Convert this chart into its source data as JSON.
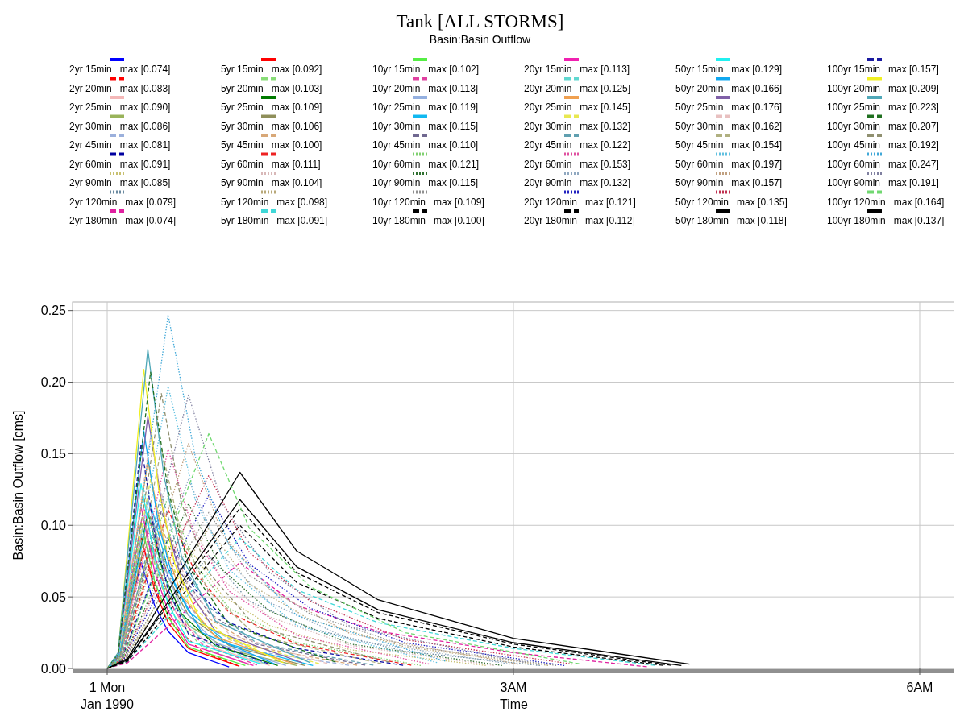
{
  "chart_data": {
    "type": "line",
    "title": "Tank [ALL STORMS]",
    "subtitle": "Basin:Basin Outflow",
    "xlabel": "Time",
    "ylabel": "Basin:Basin Outflow [cms]",
    "xlim": [
      -0.256,
      6.262
    ],
    "xticks": [
      {
        "value": 0,
        "label": "1 Mon\nJan 1990"
      },
      {
        "value": 3,
        "label": "3AM"
      },
      {
        "value": 6,
        "label": "6AM"
      }
    ],
    "ylim": [
      0,
      0.256
    ],
    "yticks": [
      {
        "value": 0,
        "label": "0.00"
      },
      {
        "value": 0.05,
        "label": "0.05"
      },
      {
        "value": 0.1,
        "label": "0.10"
      },
      {
        "value": 0.15,
        "label": "0.15"
      },
      {
        "value": 0.2,
        "label": "0.20"
      },
      {
        "value": 0.25,
        "label": "0.25"
      }
    ],
    "grid": true,
    "legend": "top",
    "marker": "none",
    "series": [
      {
        "name": "2yr 15min   max [0.074]",
        "color": "#0000ff",
        "line_style": "solid",
        "x": [
          0,
          0.08,
          0.25,
          0.35,
          0.45,
          0.6,
          0.9
        ],
        "values": [
          0,
          0.004,
          0.074,
          0.044,
          0.026,
          0.011,
          0.001
        ]
      },
      {
        "name": "2yr 20min   max [0.083]",
        "color": "#ff0000",
        "line_style": "dashed",
        "x": [
          0,
          0.08,
          0.27,
          0.38,
          0.5,
          0.7,
          0.99
        ],
        "values": [
          0,
          0.004,
          0.083,
          0.05,
          0.029,
          0.012,
          0.001
        ]
      },
      {
        "name": "2yr 25min   max [0.090]",
        "color": "#f4b8b8",
        "line_style": "solid",
        "x": [
          0,
          0.08,
          0.3,
          0.42,
          0.55,
          0.8,
          1.2
        ],
        "values": [
          0,
          0.005,
          0.09,
          0.054,
          0.032,
          0.014,
          0.002
        ]
      },
      {
        "name": "2yr 30min   max [0.086]",
        "color": "#99b35a",
        "line_style": "solid",
        "x": [
          0,
          0.08,
          0.32,
          0.45,
          0.6,
          0.9,
          1.4
        ],
        "values": [
          0,
          0.004,
          0.086,
          0.052,
          0.03,
          0.013,
          0.002
        ]
      },
      {
        "name": "2yr 45min   max [0.081]",
        "color": "#9bb0dc",
        "line_style": "dashed",
        "x": [
          0,
          0.1,
          0.4,
          0.55,
          0.75,
          1.1,
          1.8
        ],
        "values": [
          0,
          0.004,
          0.081,
          0.049,
          0.028,
          0.012,
          0.002
        ]
      },
      {
        "name": "2yr 60min   max [0.091]",
        "color": "#0000a0",
        "line_style": "dashed",
        "x": [
          0,
          0.1,
          0.45,
          0.65,
          0.9,
          1.4,
          2.2
        ],
        "values": [
          0,
          0.005,
          0.091,
          0.055,
          0.032,
          0.014,
          0.002
        ]
      },
      {
        "name": "2yr 90min   max [0.085]",
        "color": "#c8c070",
        "line_style": "dotted",
        "x": [
          0,
          0.12,
          0.6,
          0.85,
          1.2,
          1.8,
          2.8
        ],
        "values": [
          0,
          0.004,
          0.085,
          0.051,
          0.03,
          0.013,
          0.002
        ]
      },
      {
        "name": "2yr 120min   max [0.079]",
        "color": "#6a8aa0",
        "line_style": "dotted",
        "x": [
          0,
          0.12,
          0.75,
          1.05,
          1.5,
          2.2,
          3.2
        ],
        "values": [
          0,
          0.004,
          0.079,
          0.047,
          0.028,
          0.012,
          0.002
        ]
      },
      {
        "name": "2yr 180min   max [0.074]",
        "color": "#e020a0",
        "line_style": "dashed",
        "x": [
          0,
          0.15,
          0.98,
          1.4,
          2.0,
          3.0,
          4.0
        ],
        "values": [
          0,
          0.004,
          0.074,
          0.044,
          0.026,
          0.011,
          0.001
        ]
      },
      {
        "name": "5yr 15min   max [0.092]",
        "color": "#ff0000",
        "line_style": "solid",
        "x": [
          0,
          0.08,
          0.25,
          0.35,
          0.45,
          0.6,
          0.96
        ],
        "values": [
          0,
          0.005,
          0.092,
          0.055,
          0.032,
          0.014,
          0.002
        ]
      },
      {
        "name": "5yr 20min   max [0.103]",
        "color": "#88dd77",
        "line_style": "dashed",
        "x": [
          0,
          0.08,
          0.27,
          0.38,
          0.5,
          0.7,
          1.06
        ],
        "values": [
          0,
          0.005,
          0.103,
          0.062,
          0.036,
          0.015,
          0.002
        ]
      },
      {
        "name": "5yr 25min   max [0.109]",
        "color": "#007a00",
        "line_style": "solid",
        "x": [
          0,
          0.08,
          0.3,
          0.42,
          0.55,
          0.8,
          1.26
        ],
        "values": [
          0,
          0.005,
          0.109,
          0.065,
          0.038,
          0.016,
          0.002
        ]
      },
      {
        "name": "5yr 30min   max [0.106]",
        "color": "#8f8f5a",
        "line_style": "solid",
        "x": [
          0,
          0.08,
          0.32,
          0.45,
          0.6,
          0.9,
          1.46
        ],
        "values": [
          0,
          0.005,
          0.106,
          0.064,
          0.037,
          0.016,
          0.002
        ]
      },
      {
        "name": "5yr 45min   max [0.100]",
        "color": "#d8a878",
        "line_style": "dashed",
        "x": [
          0,
          0.1,
          0.4,
          0.55,
          0.75,
          1.1,
          1.86
        ],
        "values": [
          0,
          0.005,
          0.1,
          0.06,
          0.035,
          0.015,
          0.002
        ]
      },
      {
        "name": "5yr 60min   max [0.111]",
        "color": "#ee2222",
        "line_style": "dashed",
        "x": [
          0,
          0.1,
          0.45,
          0.65,
          0.9,
          1.4,
          2.26
        ],
        "values": [
          0,
          0.006,
          0.111,
          0.067,
          0.039,
          0.017,
          0.002
        ]
      },
      {
        "name": "5yr 90min   max [0.104]",
        "color": "#d8b8b8",
        "line_style": "dotted",
        "x": [
          0,
          0.12,
          0.6,
          0.85,
          1.2,
          1.8,
          2.86
        ],
        "values": [
          0,
          0.005,
          0.104,
          0.062,
          0.036,
          0.016,
          0.002
        ]
      },
      {
        "name": "5yr 120min   max [0.098]",
        "color": "#b8a878",
        "line_style": "dotted",
        "x": [
          0,
          0.12,
          0.75,
          1.05,
          1.5,
          2.2,
          3.26
        ],
        "values": [
          0,
          0.005,
          0.098,
          0.059,
          0.034,
          0.015,
          0.002
        ]
      },
      {
        "name": "5yr 180min   max [0.091]",
        "color": "#40d8d8",
        "line_style": "dashed",
        "x": [
          0,
          0.15,
          0.98,
          1.4,
          2.0,
          3.0,
          4.06
        ],
        "values": [
          0,
          0.005,
          0.091,
          0.055,
          0.032,
          0.014,
          0.002
        ]
      },
      {
        "name": "10yr 15min   max [0.102]",
        "color": "#55ee44",
        "line_style": "solid",
        "x": [
          0,
          0.08,
          0.25,
          0.35,
          0.45,
          0.6,
          1.02
        ],
        "values": [
          0,
          0.005,
          0.102,
          0.061,
          0.036,
          0.015,
          0.002
        ]
      },
      {
        "name": "10yr 20min   max [0.113]",
        "color": "#e040a0",
        "line_style": "dashed",
        "x": [
          0,
          0.08,
          0.27,
          0.38,
          0.5,
          0.7,
          1.12
        ],
        "values": [
          0,
          0.006,
          0.113,
          0.068,
          0.04,
          0.017,
          0.002
        ]
      },
      {
        "name": "10yr 25min   max [0.119]",
        "color": "#94b0e0",
        "line_style": "solid",
        "x": [
          0,
          0.08,
          0.3,
          0.42,
          0.55,
          0.8,
          1.32
        ],
        "values": [
          0,
          0.006,
          0.119,
          0.071,
          0.042,
          0.018,
          0.002
        ]
      },
      {
        "name": "10yr 30min   max [0.115]",
        "color": "#10b8f0",
        "line_style": "solid",
        "x": [
          0,
          0.08,
          0.32,
          0.45,
          0.6,
          0.9,
          1.52
        ],
        "values": [
          0,
          0.006,
          0.115,
          0.069,
          0.04,
          0.017,
          0.002
        ]
      },
      {
        "name": "10yr 45min   max [0.110]",
        "color": "#706890",
        "line_style": "dashed",
        "x": [
          0,
          0.1,
          0.4,
          0.55,
          0.75,
          1.1,
          1.92
        ],
        "values": [
          0,
          0.006,
          0.11,
          0.066,
          0.039,
          0.017,
          0.002
        ]
      },
      {
        "name": "10yr 60min   max [0.121]",
        "color": "#80d070",
        "line_style": "dotted",
        "x": [
          0,
          0.1,
          0.45,
          0.65,
          0.9,
          1.4,
          2.32
        ],
        "values": [
          0,
          0.006,
          0.121,
          0.073,
          0.042,
          0.018,
          0.002
        ]
      },
      {
        "name": "10yr 90min   max [0.115]",
        "color": "#307030",
        "line_style": "dotted",
        "x": [
          0,
          0.12,
          0.6,
          0.85,
          1.2,
          1.8,
          2.92
        ],
        "values": [
          0,
          0.006,
          0.115,
          0.069,
          0.04,
          0.017,
          0.002
        ]
      },
      {
        "name": "10yr 120min   max [0.109]",
        "color": "#909090",
        "line_style": "dotted",
        "x": [
          0,
          0.12,
          0.75,
          1.05,
          1.5,
          2.2,
          3.32
        ],
        "values": [
          0,
          0.005,
          0.109,
          0.065,
          0.038,
          0.016,
          0.002
        ]
      },
      {
        "name": "10yr 180min   max [0.100]",
        "color": "#000000",
        "line_style": "dashed",
        "x": [
          0,
          0.15,
          0.98,
          1.4,
          2.0,
          3.0,
          4.12
        ],
        "values": [
          0,
          0.005,
          0.1,
          0.06,
          0.035,
          0.015,
          0.002
        ]
      },
      {
        "name": "20yr 15min   max [0.113]",
        "color": "#f020b0",
        "line_style": "solid",
        "x": [
          0,
          0.08,
          0.25,
          0.35,
          0.45,
          0.6,
          1.08
        ],
        "values": [
          0,
          0.006,
          0.113,
          0.068,
          0.04,
          0.017,
          0.002
        ]
      },
      {
        "name": "20yr 20min   max [0.125]",
        "color": "#60d8d0",
        "line_style": "dashed",
        "x": [
          0,
          0.08,
          0.27,
          0.38,
          0.5,
          0.7,
          1.18
        ],
        "values": [
          0,
          0.006,
          0.125,
          0.075,
          0.044,
          0.019,
          0.003
        ]
      },
      {
        "name": "20yr 25min   max [0.145]",
        "color": "#f0a050",
        "line_style": "solid",
        "x": [
          0,
          0.08,
          0.3,
          0.42,
          0.55,
          0.8,
          1.38
        ],
        "values": [
          0,
          0.007,
          0.145,
          0.087,
          0.051,
          0.022,
          0.003
        ]
      },
      {
        "name": "20yr 30min   max [0.132]",
        "color": "#e8e850",
        "line_style": "dashed",
        "x": [
          0,
          0.08,
          0.32,
          0.45,
          0.6,
          0.9,
          1.58
        ],
        "values": [
          0,
          0.007,
          0.132,
          0.079,
          0.046,
          0.02,
          0.003
        ]
      },
      {
        "name": "20yr 45min   max [0.122]",
        "color": "#60a0b0",
        "line_style": "dashed",
        "x": [
          0,
          0.1,
          0.4,
          0.55,
          0.75,
          1.1,
          1.98
        ],
        "values": [
          0,
          0.006,
          0.122,
          0.073,
          0.043,
          0.018,
          0.002
        ]
      },
      {
        "name": "20yr 60min   max [0.153]",
        "color": "#e050a0",
        "line_style": "dotted",
        "x": [
          0,
          0.1,
          0.45,
          0.65,
          0.9,
          1.4,
          2.38
        ],
        "values": [
          0,
          0.008,
          0.153,
          0.092,
          0.054,
          0.023,
          0.003
        ]
      },
      {
        "name": "20yr 90min   max [0.132]",
        "color": "#90a8c0",
        "line_style": "dotted",
        "x": [
          0,
          0.12,
          0.6,
          0.85,
          1.2,
          1.8,
          2.98
        ],
        "values": [
          0,
          0.007,
          0.132,
          0.079,
          0.046,
          0.02,
          0.003
        ]
      },
      {
        "name": "20yr 120min   max [0.121]",
        "color": "#2020c0",
        "line_style": "dotted",
        "x": [
          0,
          0.12,
          0.75,
          1.05,
          1.5,
          2.2,
          3.38
        ],
        "values": [
          0,
          0.006,
          0.121,
          0.073,
          0.042,
          0.018,
          0.002
        ]
      },
      {
        "name": "20yr 180min   max [0.112]",
        "color": "#000000",
        "line_style": "dashed",
        "x": [
          0,
          0.15,
          0.98,
          1.4,
          2.0,
          3.0,
          4.18
        ],
        "values": [
          0,
          0.006,
          0.112,
          0.067,
          0.039,
          0.017,
          0.002
        ]
      },
      {
        "name": "50yr 15min   max [0.129]",
        "color": "#20f0f0",
        "line_style": "solid",
        "x": [
          0,
          0.08,
          0.25,
          0.35,
          0.45,
          0.6,
          1.14
        ],
        "values": [
          0,
          0.006,
          0.129,
          0.077,
          0.045,
          0.019,
          0.003
        ]
      },
      {
        "name": "50yr 20min   max [0.166]",
        "color": "#10a8f0",
        "line_style": "solid",
        "x": [
          0,
          0.08,
          0.27,
          0.38,
          0.5,
          0.7,
          1.24
        ],
        "values": [
          0,
          0.008,
          0.166,
          0.1,
          0.058,
          0.025,
          0.003
        ]
      },
      {
        "name": "50yr 25min   max [0.176]",
        "color": "#8060a8",
        "line_style": "solid",
        "x": [
          0,
          0.08,
          0.3,
          0.42,
          0.55,
          0.8,
          1.44
        ],
        "values": [
          0,
          0.009,
          0.176,
          0.106,
          0.062,
          0.026,
          0.004
        ]
      },
      {
        "name": "50yr 30min   max [0.162]",
        "color": "#e8c0c0",
        "line_style": "dashed",
        "x": [
          0,
          0.08,
          0.32,
          0.45,
          0.6,
          0.9,
          1.64
        ],
        "values": [
          0,
          0.008,
          0.162,
          0.097,
          0.057,
          0.024,
          0.003
        ]
      },
      {
        "name": "50yr 45min   max [0.154]",
        "color": "#b0b080",
        "line_style": "dashed",
        "x": [
          0,
          0.1,
          0.4,
          0.55,
          0.75,
          1.1,
          2.04
        ],
        "values": [
          0,
          0.008,
          0.154,
          0.092,
          0.054,
          0.023,
          0.003
        ]
      },
      {
        "name": "50yr 60min   max [0.197]",
        "color": "#60c0e0",
        "line_style": "dotted",
        "x": [
          0,
          0.1,
          0.45,
          0.65,
          0.9,
          1.4,
          2.44
        ],
        "values": [
          0,
          0.01,
          0.197,
          0.118,
          0.069,
          0.03,
          0.004
        ]
      },
      {
        "name": "50yr 90min   max [0.157]",
        "color": "#c0a080",
        "line_style": "dotted",
        "x": [
          0,
          0.12,
          0.6,
          0.85,
          1.2,
          1.8,
          3.04
        ],
        "values": [
          0,
          0.008,
          0.157,
          0.094,
          0.055,
          0.024,
          0.003
        ]
      },
      {
        "name": "50yr 120min   max [0.135]",
        "color": "#c03050",
        "line_style": "dotted",
        "x": [
          0,
          0.12,
          0.75,
          1.05,
          1.5,
          2.2,
          3.44
        ],
        "values": [
          0,
          0.007,
          0.135,
          0.081,
          0.047,
          0.02,
          0.003
        ]
      },
      {
        "name": "50yr 180min   max [0.118]",
        "color": "#000000",
        "line_style": "solid",
        "x": [
          0,
          0.15,
          0.98,
          1.4,
          2.0,
          3.0,
          4.24
        ],
        "values": [
          0,
          0.006,
          0.118,
          0.071,
          0.041,
          0.018,
          0.002
        ]
      },
      {
        "name": "100yr 15min   max [0.157]",
        "color": "#1a1aa0",
        "line_style": "dashed",
        "x": [
          0,
          0.08,
          0.25,
          0.35,
          0.45,
          0.6,
          1.2
        ],
        "values": [
          0,
          0.008,
          0.157,
          0.094,
          0.055,
          0.024,
          0.003
        ]
      },
      {
        "name": "100yr 20min   max [0.209]",
        "color": "#f0f020",
        "line_style": "solid",
        "x": [
          0,
          0.08,
          0.27,
          0.38,
          0.5,
          0.7,
          1.3
        ],
        "values": [
          0,
          0.01,
          0.209,
          0.125,
          0.073,
          0.031,
          0.004
        ]
      },
      {
        "name": "100yr 25min   max [0.223]",
        "color": "#50a8b8",
        "line_style": "solid",
        "x": [
          0,
          0.08,
          0.3,
          0.42,
          0.55,
          0.8,
          1.5
        ],
        "values": [
          0,
          0.011,
          0.223,
          0.134,
          0.078,
          0.033,
          0.004
        ]
      },
      {
        "name": "100yr 30min   max [0.207]",
        "color": "#207020",
        "line_style": "dashed",
        "x": [
          0,
          0.08,
          0.32,
          0.45,
          0.6,
          0.9,
          1.7
        ],
        "values": [
          0,
          0.01,
          0.207,
          0.124,
          0.072,
          0.031,
          0.004
        ]
      },
      {
        "name": "100yr 45min   max [0.192]",
        "color": "#909070",
        "line_style": "dashed",
        "x": [
          0,
          0.1,
          0.4,
          0.55,
          0.75,
          1.1,
          2.1
        ],
        "values": [
          0,
          0.01,
          0.192,
          0.115,
          0.067,
          0.029,
          0.004
        ]
      },
      {
        "name": "100yr 60min   max [0.247]",
        "color": "#40a8d8",
        "line_style": "dotted",
        "x": [
          0,
          0.1,
          0.45,
          0.65,
          0.9,
          1.4,
          2.5
        ],
        "values": [
          0,
          0.012,
          0.247,
          0.148,
          0.086,
          0.037,
          0.005
        ]
      },
      {
        "name": "100yr 90min   max [0.191]",
        "color": "#8080a0",
        "line_style": "dotted",
        "x": [
          0,
          0.12,
          0.6,
          0.85,
          1.2,
          1.8,
          3.1
        ],
        "values": [
          0,
          0.01,
          0.191,
          0.115,
          0.067,
          0.029,
          0.004
        ]
      },
      {
        "name": "100yr 120min   max [0.164]",
        "color": "#70d870",
        "line_style": "dashed",
        "x": [
          0,
          0.12,
          0.75,
          1.05,
          1.5,
          2.2,
          3.5
        ],
        "values": [
          0,
          0.008,
          0.164,
          0.098,
          0.057,
          0.025,
          0.003
        ]
      },
      {
        "name": "100yr 180min   max [0.137]",
        "color": "#000000",
        "line_style": "solid",
        "x": [
          0,
          0.15,
          0.98,
          1.4,
          2.0,
          3.0,
          4.3
        ],
        "values": [
          0,
          0.007,
          0.137,
          0.082,
          0.048,
          0.021,
          0.003
        ]
      }
    ]
  }
}
